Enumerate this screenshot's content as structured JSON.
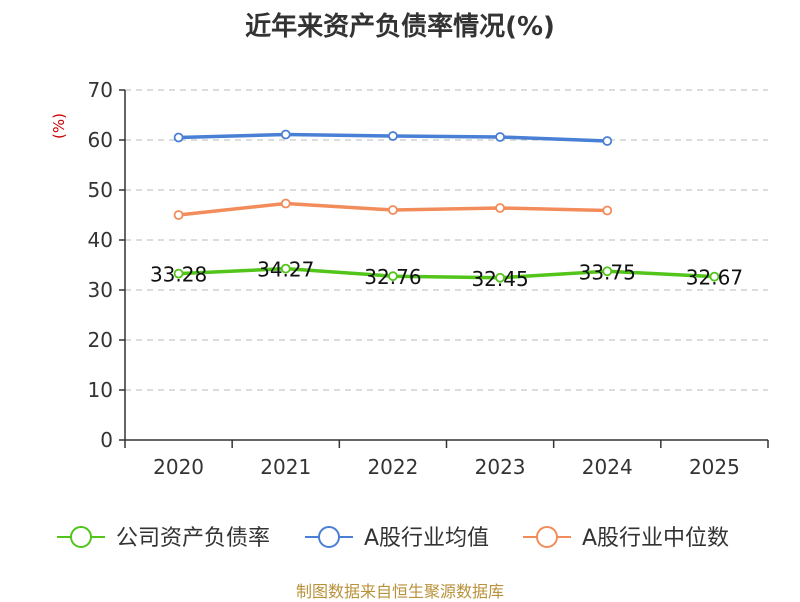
{
  "chart_data": {
    "type": "line",
    "title": "近年来资产负债率情况(%)",
    "ylabel": "(%)",
    "xlabel": "",
    "ylim": [
      0,
      70
    ],
    "yticks": [
      0,
      10,
      20,
      30,
      40,
      50,
      60,
      70
    ],
    "categories": [
      "2020",
      "2021",
      "2022",
      "2023",
      "2024",
      "2025"
    ],
    "grid": true,
    "legend_position": "bottom",
    "series": [
      {
        "name": "公司资产负债率",
        "color": "#52c41a",
        "values": [
          33.28,
          34.27,
          32.76,
          32.45,
          33.75,
          32.67
        ],
        "labels": [
          "33.28",
          "34.27",
          "32.76",
          "32.45",
          "33.75",
          "32.67"
        ]
      },
      {
        "name": "A股行业均值",
        "color": "#4a7fd6",
        "values": [
          60.5,
          61.1,
          60.8,
          60.6,
          59.8,
          null
        ]
      },
      {
        "name": "A股行业中位数",
        "color": "#f28c5a",
        "values": [
          45.0,
          47.3,
          46.0,
          46.4,
          45.9,
          null
        ]
      }
    ]
  },
  "source": "制图数据来自恒生聚源数据库"
}
